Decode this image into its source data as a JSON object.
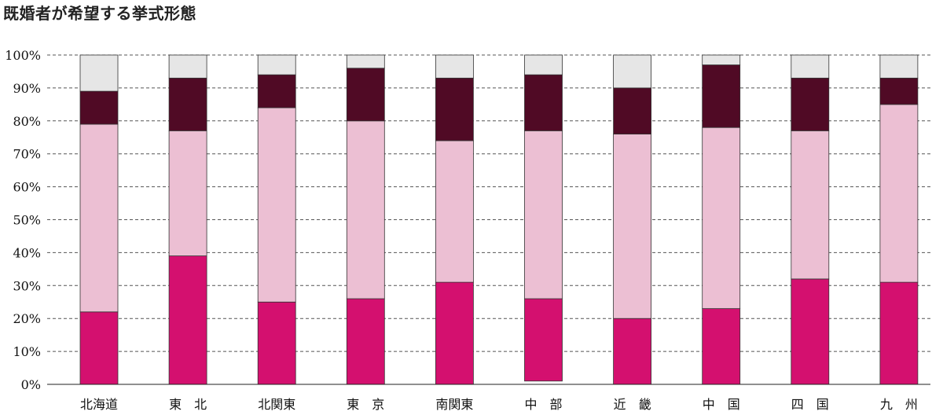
{
  "title": "既婚者が希望する挙式形態",
  "chart_data": {
    "type": "bar",
    "stacked": true,
    "title": "既婚者が希望する挙式形態",
    "xlabel": "",
    "ylabel": "",
    "ylim": [
      0,
      100
    ],
    "yticks": [
      "0%",
      "10%",
      "20%",
      "30%",
      "40%",
      "50%",
      "60%",
      "70%",
      "80%",
      "90%",
      "100%"
    ],
    "grid": "horizontal dashed",
    "legend": "none",
    "categories": [
      "北海道",
      "東　北",
      "北関東",
      "東　京",
      "南関東",
      "中　部",
      "近　畿",
      "中　国",
      "四　国",
      "九　州"
    ],
    "bottoms": [
      0,
      0,
      0,
      0,
      0,
      1,
      0,
      0,
      0,
      0
    ],
    "series": [
      {
        "values": [
          22,
          39,
          25,
          26,
          31,
          25,
          20,
          23,
          32,
          31
        ],
        "color": "#d4106f"
      },
      {
        "values": [
          57,
          38,
          59,
          54,
          43,
          51,
          56,
          55,
          45,
          54
        ],
        "color": "#ecbfd3"
      },
      {
        "values": [
          10,
          16,
          10,
          16,
          19,
          17,
          14,
          19,
          16,
          8
        ],
        "color": "#500a25"
      },
      {
        "values": [
          11,
          7,
          6,
          4,
          7,
          6,
          10,
          3,
          7,
          7
        ],
        "color": "#e6e6e6"
      }
    ]
  }
}
